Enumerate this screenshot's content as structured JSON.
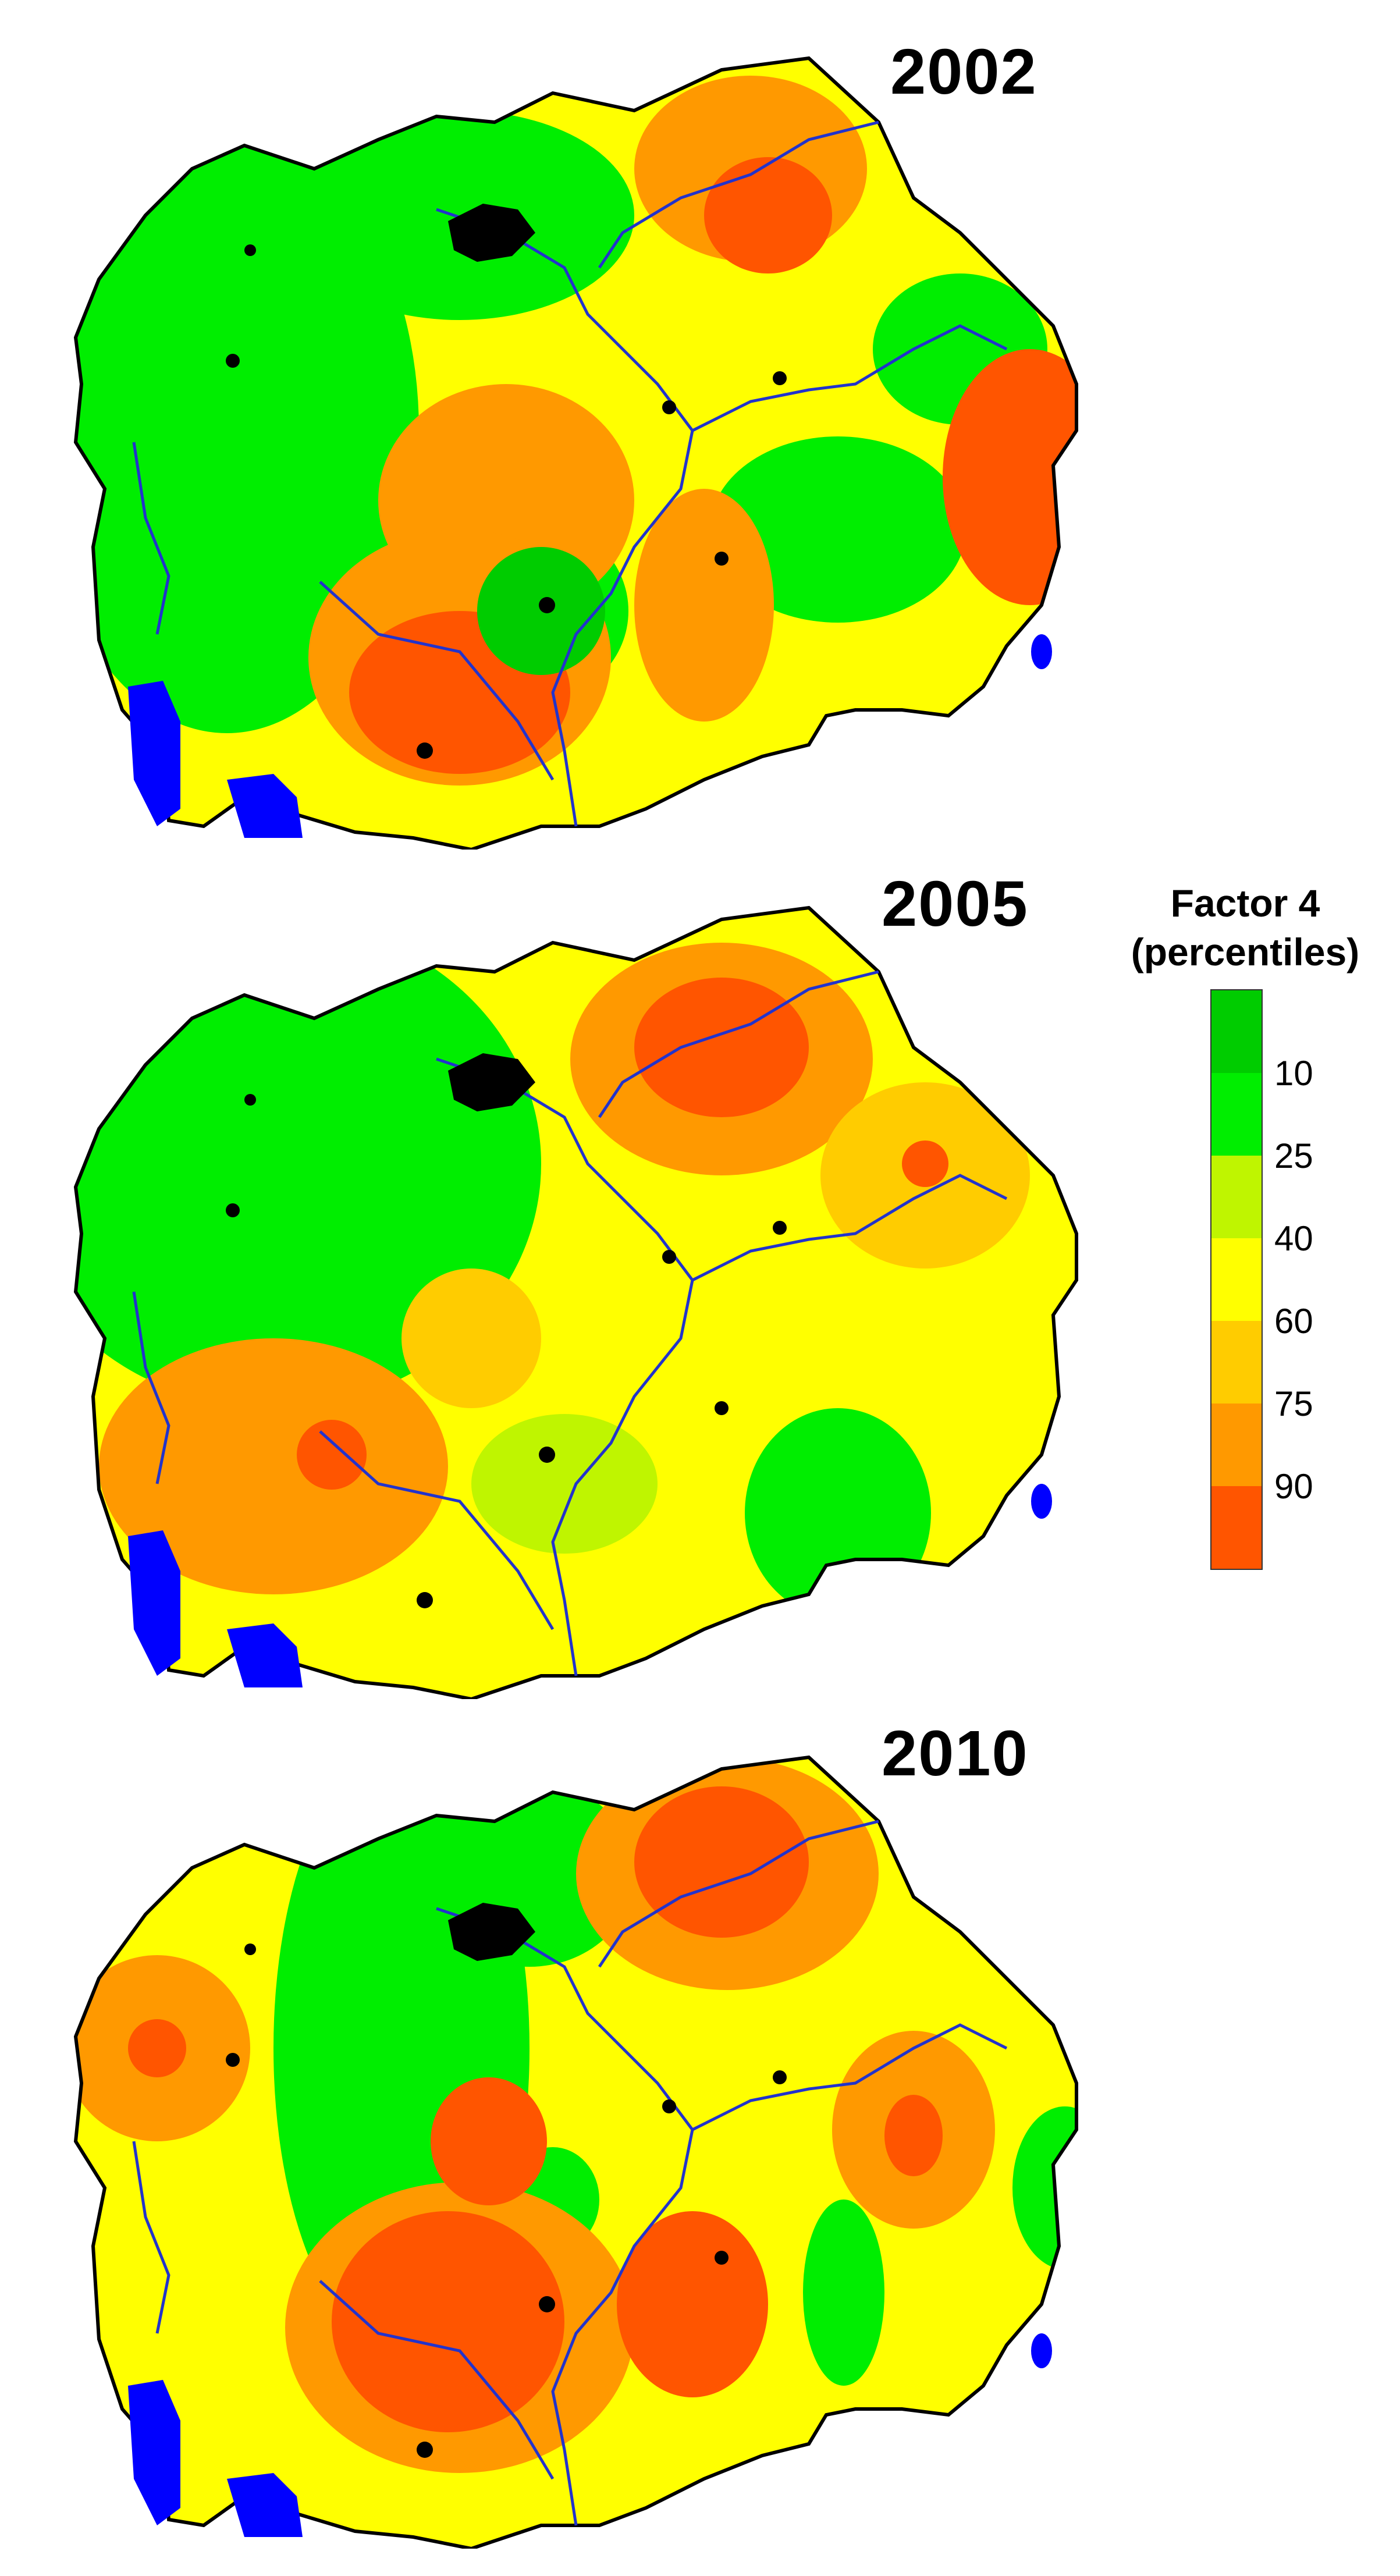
{
  "panels": [
    {
      "year": "2002"
    },
    {
      "year": "2005"
    },
    {
      "year": "2010"
    }
  ],
  "legend": {
    "title_line1": "Factor 4",
    "title_line2": "(percentiles)",
    "classes": [
      {
        "color": "#00cc00"
      },
      {
        "color": "#00ee00"
      },
      {
        "color": "#bff500"
      },
      {
        "color": "#ffff00"
      },
      {
        "color": "#ffcc00"
      },
      {
        "color": "#ff9900"
      },
      {
        "color": "#ff5500"
      }
    ],
    "tick_labels": [
      "10",
      "25",
      "40",
      "60",
      "75",
      "90"
    ]
  },
  "colors": {
    "lake": "#0000ff",
    "river": "#2233cc",
    "urban": "#000000",
    "border": "#000000"
  }
}
